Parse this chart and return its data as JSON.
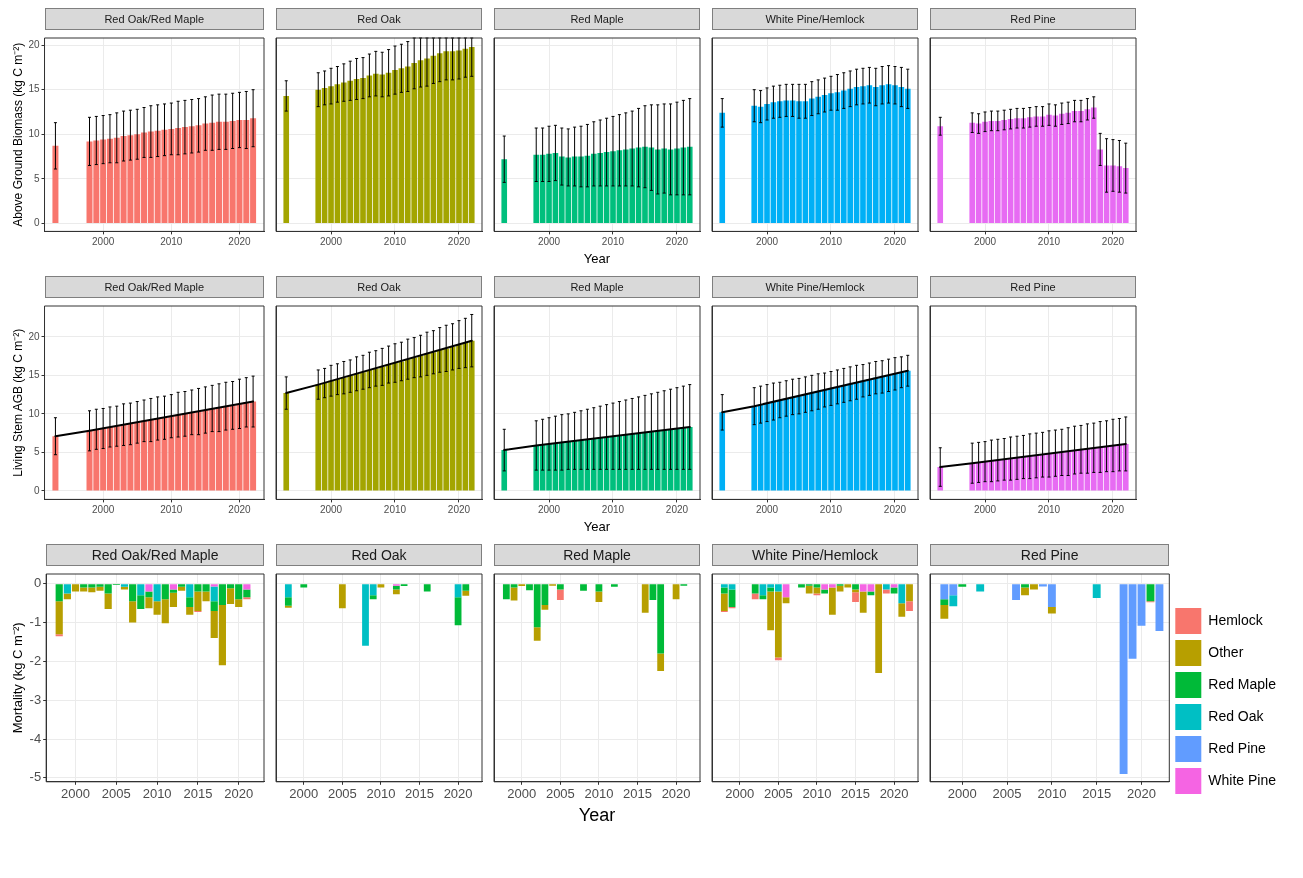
{
  "chart_data": [
    {
      "type": "bar",
      "title": "Red Oak/Red Maple",
      "ylabel": "Above Ground Biomass (kg C m⁻²)",
      "x": [
        1993,
        1998,
        1999,
        2000,
        2001,
        2002,
        2003,
        2004,
        2005,
        2006,
        2007,
        2008,
        2009,
        2010,
        2011,
        2012,
        2013,
        2014,
        2015,
        2016,
        2017,
        2018,
        2019,
        2020,
        2021,
        2022
      ],
      "color": "#f8766d",
      "values": [
        8.7,
        9.2,
        9.3,
        9.4,
        9.5,
        9.6,
        9.8,
        9.9,
        10.0,
        10.2,
        10.3,
        10.4,
        10.5,
        10.6,
        10.7,
        10.8,
        10.9,
        11.0,
        11.2,
        11.3,
        11.4,
        11.4,
        11.5,
        11.6,
        11.6,
        11.8
      ],
      "errors": [
        2.6,
        2.7,
        2.7,
        2.7,
        2.7,
        2.8,
        2.8,
        2.8,
        2.8,
        2.8,
        2.9,
        2.9,
        2.9,
        2.9,
        3.0,
        3.0,
        3.0,
        3.0,
        3.0,
        3.1,
        3.1,
        3.1,
        3.1,
        3.1,
        3.2,
        3.2
      ],
      "xlim": [
        1991.4,
        2023.6
      ],
      "ylim": [
        -0.9,
        20.8
      ],
      "xticks": [
        2000,
        2010,
        2020
      ],
      "yticks": [
        0,
        5,
        10,
        15,
        20
      ],
      "grid": true
    },
    {
      "type": "bar",
      "title": "Red Oak",
      "x": [
        1993,
        1998,
        1999,
        2000,
        2001,
        2002,
        2003,
        2004,
        2005,
        2006,
        2007,
        2008,
        2009,
        2010,
        2011,
        2012,
        2013,
        2014,
        2015,
        2016,
        2017,
        2018,
        2019,
        2020,
        2021,
        2022
      ],
      "color": "#a3a500",
      "values": [
        14.3,
        15.0,
        15.2,
        15.4,
        15.6,
        15.8,
        16.0,
        16.2,
        16.3,
        16.6,
        16.8,
        16.7,
        16.9,
        17.2,
        17.4,
        17.6,
        18.0,
        18.3,
        18.5,
        18.8,
        19.1,
        19.3,
        19.3,
        19.4,
        19.6,
        19.8
      ],
      "errors": [
        1.7,
        1.9,
        1.9,
        2.0,
        2.0,
        2.1,
        2.2,
        2.3,
        2.3,
        2.4,
        2.5,
        2.5,
        2.6,
        2.7,
        2.7,
        2.8,
        [
          15.1,
          20.8
        ],
        [
          15.3,
          20.8
        ],
        [
          15.4,
          20.8
        ],
        [
          15.7,
          20.8
        ],
        [
          15.9,
          20.8
        ],
        [
          16.1,
          20.8
        ],
        [
          16.1,
          20.8
        ],
        [
          16.2,
          20.8
        ],
        [
          16.4,
          20.8
        ],
        [
          16.5,
          20.8
        ]
      ],
      "xlim": [
        1991.4,
        2023.6
      ],
      "ylim": [
        -0.9,
        20.8
      ],
      "xticks": [
        2000,
        2010,
        2020
      ],
      "yticks": [
        0,
        5,
        10,
        15,
        20
      ],
      "grid": true,
      "tick_labels": "x"
    },
    {
      "type": "bar",
      "title": "Red Maple",
      "xlabel": "Year",
      "x": [
        1993,
        1998,
        1999,
        2000,
        2001,
        2002,
        2003,
        2004,
        2005,
        2006,
        2007,
        2008,
        2009,
        2010,
        2011,
        2012,
        2013,
        2014,
        2015,
        2016,
        2017,
        2018,
        2019,
        2020,
        2021,
        2022
      ],
      "color": "#00bf7d",
      "values": [
        7.2,
        7.7,
        7.7,
        7.8,
        7.9,
        7.5,
        7.4,
        7.5,
        7.5,
        7.6,
        7.8,
        7.9,
        8.0,
        8.1,
        8.2,
        8.3,
        8.4,
        8.5,
        8.6,
        8.5,
        8.3,
        8.4,
        8.3,
        8.4,
        8.5,
        8.6
      ],
      "errors": [
        2.6,
        3.0,
        3.0,
        3.1,
        3.1,
        3.2,
        3.2,
        3.3,
        3.4,
        3.5,
        3.6,
        3.7,
        3.8,
        3.9,
        4.0,
        4.1,
        4.2,
        4.4,
        4.6,
        4.8,
        5.0,
        5.0,
        5.1,
        5.2,
        5.3,
        5.4
      ],
      "xlim": [
        1991.4,
        2023.6
      ],
      "ylim": [
        -0.9,
        20.8
      ],
      "xticks": [
        2000,
        2010,
        2020
      ],
      "yticks": [
        0,
        5,
        10,
        15,
        20
      ],
      "grid": true,
      "tick_labels": "x"
    },
    {
      "type": "bar",
      "title": "White Pine/Hemlock",
      "x": [
        1993,
        1998,
        1999,
        2000,
        2001,
        2002,
        2003,
        2004,
        2005,
        2006,
        2007,
        2008,
        2009,
        2010,
        2011,
        2012,
        2013,
        2014,
        2015,
        2016,
        2017,
        2018,
        2019,
        2020,
        2021,
        2022
      ],
      "color": "#00b0f6",
      "values": [
        12.4,
        13.2,
        13.1,
        13.4,
        13.6,
        13.7,
        13.8,
        13.8,
        13.7,
        13.7,
        14.0,
        14.2,
        14.4,
        14.6,
        14.7,
        14.9,
        15.1,
        15.3,
        15.4,
        15.5,
        15.3,
        15.5,
        15.6,
        15.5,
        15.3,
        15.1
      ],
      "errors": [
        1.6,
        1.8,
        1.8,
        1.8,
        1.8,
        1.8,
        1.8,
        1.8,
        1.9,
        1.9,
        1.9,
        1.9,
        1.9,
        1.9,
        2.0,
        2.0,
        2.0,
        2.0,
        2.0,
        2.0,
        2.1,
        2.1,
        2.1,
        2.1,
        2.2,
        2.2
      ],
      "xlim": [
        1991.4,
        2023.6
      ],
      "ylim": [
        -0.9,
        20.8
      ],
      "xticks": [
        2000,
        2010,
        2020
      ],
      "yticks": [
        0,
        5,
        10,
        15,
        20
      ],
      "grid": true,
      "tick_labels": "x"
    },
    {
      "type": "bar",
      "title": "Red Pine",
      "x": [
        1993,
        1998,
        1999,
        2000,
        2001,
        2002,
        2003,
        2004,
        2005,
        2006,
        2007,
        2008,
        2009,
        2010,
        2011,
        2012,
        2013,
        2014,
        2015,
        2016,
        2017,
        2018,
        2019,
        2020,
        2021,
        2022
      ],
      "color": "#e76bf3",
      "values": [
        10.9,
        11.3,
        11.2,
        11.4,
        11.5,
        11.5,
        11.6,
        11.7,
        11.8,
        11.8,
        11.9,
        12.0,
        12.0,
        12.2,
        12.1,
        12.3,
        12.4,
        12.6,
        12.6,
        12.8,
        13.0,
        8.3,
        6.5,
        6.5,
        6.4,
        6.2
      ],
      "errors": [
        1.0,
        1.1,
        1.1,
        1.1,
        1.1,
        1.1,
        1.1,
        1.1,
        1.1,
        1.1,
        1.1,
        1.1,
        1.1,
        1.2,
        1.2,
        1.2,
        1.2,
        1.2,
        1.2,
        1.2,
        1.2,
        1.8,
        3.0,
        2.9,
        2.9,
        2.8
      ],
      "xlim": [
        1991.4,
        2023.6
      ],
      "ylim": [
        -0.9,
        20.8
      ],
      "xticks": [
        2000,
        2010,
        2020
      ],
      "yticks": [
        0,
        5,
        10,
        15,
        20
      ],
      "grid": true,
      "tick_labels": "x"
    },
    {
      "type": "bar",
      "title": "Red Oak/Red Maple",
      "ylabel": "Living Stem AGB (kg C m⁻²)",
      "x": [
        1993,
        1998,
        1999,
        2000,
        2001,
        2002,
        2003,
        2004,
        2005,
        2006,
        2007,
        2008,
        2009,
        2010,
        2011,
        2012,
        2013,
        2014,
        2015,
        2016,
        2017,
        2018,
        2019,
        2020,
        2021,
        2022
      ],
      "series": [
        {
          "type": "bar",
          "color": "#f8766d",
          "values": [
            7.1,
            7.8,
            8.0,
            8.1,
            8.3,
            8.4,
            8.6,
            8.7,
            8.9,
            9.1,
            9.2,
            9.4,
            9.5,
            9.7,
            9.9,
            10.0,
            10.2,
            10.3,
            10.5,
            10.7,
            10.8,
            11.0,
            11.1,
            11.3,
            11.5,
            11.6
          ],
          "errors": [
            2.4,
            2.6,
            2.6,
            2.6,
            2.6,
            2.6,
            2.7,
            2.7,
            2.7,
            2.7,
            2.8,
            2.8,
            2.8,
            2.8,
            2.9,
            2.9,
            2.9,
            3.0,
            3.0,
            3.0,
            3.1,
            3.1,
            3.1,
            3.2,
            3.2,
            3.3
          ]
        },
        {
          "type": "line",
          "color": "#000000",
          "x": [
            1993,
            1998,
            2022
          ],
          "values": [
            7.1,
            7.8,
            11.6
          ]
        }
      ],
      "xlim": [
        1991.4,
        2023.6
      ],
      "ylim": [
        -1.1,
        24
      ],
      "xticks": [
        2000,
        2010,
        2020
      ],
      "yticks": [
        0,
        5,
        10,
        15,
        20
      ],
      "grid": true
    },
    {
      "type": "bar",
      "title": "Red Oak",
      "x": [
        1993,
        1998,
        1999,
        2000,
        2001,
        2002,
        2003,
        2004,
        2005,
        2006,
        2007,
        2008,
        2009,
        2010,
        2011,
        2012,
        2013,
        2014,
        2015,
        2016,
        2017,
        2018,
        2019,
        2020,
        2021,
        2022
      ],
      "series": [
        {
          "type": "bar",
          "color": "#a3a500",
          "values": [
            12.7,
            13.8,
            14.0,
            14.3,
            14.5,
            14.7,
            14.9,
            15.2,
            15.4,
            15.7,
            15.9,
            16.1,
            16.4,
            16.6,
            16.8,
            17.1,
            17.3,
            17.5,
            17.8,
            18.0,
            18.3,
            18.5,
            18.7,
            19.0,
            19.2,
            19.5
          ],
          "errors": [
            2.1,
            1.9,
            1.9,
            2.0,
            2.0,
            2.1,
            2.1,
            2.2,
            2.2,
            2.3,
            2.3,
            2.4,
            2.4,
            2.5,
            2.5,
            2.6,
            2.6,
            2.7,
            2.8,
            2.8,
            2.9,
            3.0,
            3.0,
            3.1,
            3.2,
            3.4
          ]
        },
        {
          "type": "line",
          "color": "#000000",
          "x": [
            1993,
            1998,
            2022
          ],
          "values": [
            12.7,
            13.8,
            19.5
          ]
        }
      ],
      "xlim": [
        1991.4,
        2023.6
      ],
      "ylim": [
        -1.1,
        24
      ],
      "xticks": [
        2000,
        2010,
        2020
      ],
      "yticks": [
        0,
        5,
        10,
        15,
        20
      ],
      "grid": true,
      "tick_labels": "x"
    },
    {
      "type": "bar",
      "title": "Red Maple",
      "xlabel": "Year",
      "x": [
        1993,
        1998,
        1999,
        2000,
        2001,
        2002,
        2003,
        2004,
        2005,
        2006,
        2007,
        2008,
        2009,
        2010,
        2011,
        2012,
        2013,
        2014,
        2015,
        2016,
        2017,
        2018,
        2019,
        2020,
        2021,
        2022
      ],
      "series": [
        {
          "type": "bar",
          "color": "#00bf7d",
          "values": [
            5.3,
            5.9,
            6.0,
            6.1,
            6.2,
            6.3,
            6.4,
            6.5,
            6.6,
            6.7,
            6.8,
            6.9,
            7.0,
            7.1,
            7.2,
            7.3,
            7.4,
            7.5,
            7.6,
            7.7,
            7.8,
            7.9,
            8.0,
            8.1,
            8.2,
            8.3
          ],
          "errors": [
            2.7,
            3.2,
            3.3,
            3.4,
            3.5,
            3.6,
            3.6,
            3.7,
            3.8,
            3.9,
            4.0,
            4.1,
            4.2,
            4.3,
            4.4,
            4.5,
            4.6,
            4.7,
            4.8,
            4.9,
            5.0,
            5.1,
            5.2,
            5.3,
            5.4,
            5.5
          ]
        },
        {
          "type": "line",
          "color": "#000000",
          "x": [
            1993,
            1998,
            2022
          ],
          "values": [
            5.3,
            5.9,
            8.3
          ]
        }
      ],
      "xlim": [
        1991.4,
        2023.6
      ],
      "ylim": [
        -1.1,
        24
      ],
      "xticks": [
        2000,
        2010,
        2020
      ],
      "yticks": [
        0,
        5,
        10,
        15,
        20
      ],
      "grid": true,
      "tick_labels": "x"
    },
    {
      "type": "bar",
      "title": "White Pine/Hemlock",
      "x": [
        1993,
        1998,
        1999,
        2000,
        2001,
        2002,
        2003,
        2004,
        2005,
        2006,
        2007,
        2008,
        2009,
        2010,
        2011,
        2012,
        2013,
        2014,
        2015,
        2016,
        2017,
        2018,
        2019,
        2020,
        2021,
        2022
      ],
      "series": [
        {
          "type": "bar",
          "color": "#00b0f6",
          "values": [
            10.2,
            11.0,
            11.2,
            11.4,
            11.6,
            11.8,
            12.0,
            12.2,
            12.3,
            12.5,
            12.7,
            12.9,
            13.1,
            13.3,
            13.5,
            13.7,
            13.9,
            14.1,
            14.3,
            14.5,
            14.7,
            14.8,
            15.0,
            15.2,
            15.4,
            15.6
          ],
          "errors": [
            2.3,
            2.4,
            2.4,
            2.4,
            2.4,
            2.3,
            2.3,
            2.3,
            2.3,
            2.3,
            2.3,
            2.3,
            2.2,
            2.2,
            2.2,
            2.2,
            2.2,
            2.2,
            2.1,
            2.1,
            2.1,
            2.1,
            2.1,
            2.1,
            2.0,
            2.0
          ]
        },
        {
          "type": "line",
          "color": "#000000",
          "x": [
            1993,
            1998,
            2022
          ],
          "values": [
            10.2,
            11.0,
            15.6
          ]
        }
      ],
      "xlim": [
        1991.4,
        2023.6
      ],
      "ylim": [
        -1.1,
        24
      ],
      "xticks": [
        2000,
        2010,
        2020
      ],
      "yticks": [
        0,
        5,
        10,
        15,
        20
      ],
      "grid": true,
      "tick_labels": "x"
    },
    {
      "type": "bar",
      "title": "Red Pine",
      "x": [
        1993,
        1998,
        1999,
        2000,
        2001,
        2002,
        2003,
        2004,
        2005,
        2006,
        2007,
        2008,
        2009,
        2010,
        2011,
        2012,
        2013,
        2014,
        2015,
        2016,
        2017,
        2018,
        2019,
        2020,
        2021,
        2022
      ],
      "series": [
        {
          "type": "bar",
          "color": "#e76bf3",
          "values": [
            3.1,
            3.6,
            3.7,
            3.8,
            3.9,
            4.0,
            4.1,
            4.2,
            4.3,
            4.4,
            4.5,
            4.6,
            4.7,
            4.8,
            4.9,
            5.0,
            5.1,
            5.3,
            5.4,
            5.5,
            5.6,
            5.7,
            5.8,
            5.9,
            6.0,
            6.1
          ],
          "errors": [
            2.5,
            2.6,
            2.6,
            2.6,
            2.7,
            2.7,
            2.7,
            2.8,
            2.8,
            2.8,
            2.9,
            2.9,
            2.9,
            3.0,
            3.0,
            3.0,
            3.1,
            3.1,
            3.1,
            3.2,
            3.2,
            3.3,
            3.3,
            3.4,
            3.4,
            3.5
          ]
        },
        {
          "type": "line",
          "color": "#000000",
          "x": [
            1993,
            1998,
            2022
          ],
          "values": [
            3.1,
            3.6,
            6.1
          ]
        }
      ],
      "xlim": [
        1991.4,
        2023.6
      ],
      "ylim": [
        -1.1,
        24
      ],
      "xticks": [
        2000,
        2010,
        2020
      ],
      "yticks": [
        0,
        5,
        10,
        15,
        20
      ],
      "grid": true,
      "tick_labels": "x"
    },
    {
      "type": "bar",
      "stacked": true,
      "title": "Red Oak/Red Maple",
      "ylabel": "Mortality (kg C m⁻²)",
      "x": [
        1998,
        1999,
        2000,
        2001,
        2002,
        2003,
        2004,
        2005,
        2006,
        2007,
        2008,
        2009,
        2010,
        2011,
        2012,
        2013,
        2014,
        2015,
        2016,
        2017,
        2018,
        2019,
        2020,
        2021
      ],
      "series": [
        {
          "color": "#f564e3",
          "values": [
            null,
            null,
            null,
            null,
            null,
            null,
            null,
            null,
            null,
            null,
            null,
            -0.2,
            null,
            null,
            -0.15,
            null,
            null,
            null,
            null,
            -0.07,
            null,
            null,
            null,
            -0.15
          ]
        },
        {
          "color": "#00bfc4",
          "values": [
            null,
            -0.25,
            null,
            null,
            null,
            null,
            null,
            null,
            -0.08,
            null,
            -0.3,
            null,
            -0.45,
            null,
            null,
            null,
            -0.35,
            null,
            null,
            -0.38,
            null,
            null,
            null,
            null
          ]
        },
        {
          "color": "#00ba38",
          "values": [
            -0.45,
            null,
            null,
            -0.1,
            -0.1,
            -0.08,
            -0.25,
            -0.03,
            null,
            -0.45,
            -0.35,
            -0.15,
            null,
            -0.4,
            -0.08,
            -0.08,
            -0.25,
            -0.2,
            -0.2,
            -0.25,
            -0.55,
            -0.12,
            -0.4,
            -0.2
          ]
        },
        {
          "color": "#b79f00",
          "values": [
            -0.85,
            -0.15,
            -0.2,
            -0.1,
            -0.12,
            -0.1,
            -0.4,
            null,
            -0.07,
            -0.55,
            null,
            -0.28,
            -0.35,
            -0.62,
            -0.37,
            -0.1,
            -0.2,
            -0.5,
            -0.25,
            -0.7,
            -1.55,
            -0.4,
            -0.2,
            null
          ]
        },
        {
          "color": "#f8766d",
          "values": [
            -0.05,
            null,
            null,
            null,
            null,
            null,
            null,
            null,
            null,
            null,
            null,
            null,
            null,
            null,
            null,
            null,
            null,
            -0.03,
            null,
            null,
            null,
            null,
            null,
            -0.05
          ]
        }
      ],
      "xlim": [
        1996.4,
        2023.1
      ],
      "ylim": [
        -5.1,
        0.25
      ],
      "xticks": [
        2000,
        2005,
        2010,
        2015,
        2020
      ],
      "yticks": [
        0,
        -1,
        -2,
        -3,
        -4,
        -5
      ],
      "grid": true
    },
    {
      "type": "bar",
      "stacked": true,
      "title": "Red Oak",
      "x": [
        1998,
        1999,
        2000,
        2001,
        2002,
        2003,
        2004,
        2005,
        2006,
        2007,
        2008,
        2009,
        2010,
        2011,
        2012,
        2013,
        2014,
        2015,
        2016,
        2017,
        2018,
        2019,
        2020,
        2021
      ],
      "series": [
        {
          "color": "#f564e3",
          "values": [
            null,
            null,
            null,
            null,
            null,
            null,
            null,
            null,
            null,
            null,
            null,
            null,
            null,
            null,
            -0.05,
            null,
            null,
            null,
            null,
            null,
            null,
            null,
            null,
            null
          ]
        },
        {
          "color": "#00bfc4",
          "values": [
            -0.35,
            null,
            null,
            null,
            null,
            null,
            null,
            null,
            null,
            null,
            -1.6,
            -0.3,
            null,
            null,
            null,
            null,
            null,
            null,
            null,
            null,
            null,
            null,
            -0.35,
            null
          ]
        },
        {
          "color": "#00ba38",
          "values": [
            -0.22,
            null,
            -0.1,
            null,
            null,
            null,
            null,
            null,
            null,
            null,
            null,
            -0.1,
            null,
            null,
            -0.1,
            -0.06,
            null,
            null,
            -0.2,
            null,
            null,
            null,
            -0.72,
            -0.18
          ]
        },
        {
          "color": "#b79f00",
          "values": [
            -0.05,
            null,
            null,
            null,
            null,
            null,
            null,
            -0.63,
            null,
            null,
            null,
            null,
            -0.1,
            null,
            -0.12,
            null,
            null,
            null,
            null,
            null,
            null,
            null,
            null,
            -0.13
          ]
        }
      ],
      "xlim": [
        1996.4,
        2023.1
      ],
      "ylim": [
        -5.1,
        0.25
      ],
      "xticks": [
        2000,
        2005,
        2010,
        2015,
        2020
      ],
      "yticks": [
        0,
        -1,
        -2,
        -3,
        -4,
        -5
      ],
      "grid": true,
      "tick_labels": "x"
    },
    {
      "type": "bar",
      "stacked": true,
      "title": "Red Maple",
      "xlabel": "Year",
      "x": [
        1998,
        1999,
        2000,
        2001,
        2002,
        2003,
        2004,
        2005,
        2006,
        2007,
        2008,
        2009,
        2010,
        2011,
        2012,
        2013,
        2014,
        2015,
        2016,
        2017,
        2018,
        2019,
        2020,
        2021
      ],
      "series": [
        {
          "color": "#00ba38",
          "values": [
            -0.4,
            -0.1,
            null,
            -0.17,
            -1.12,
            -0.55,
            null,
            -0.15,
            null,
            null,
            -0.18,
            null,
            -0.2,
            null,
            -0.08,
            null,
            null,
            null,
            null,
            -0.42,
            -1.8,
            null,
            null,
            -0.05
          ]
        },
        {
          "color": "#b79f00",
          "values": [
            null,
            -0.33,
            -0.06,
            null,
            -0.35,
            -0.12,
            -0.05,
            null,
            null,
            null,
            null,
            null,
            -0.27,
            null,
            null,
            null,
            null,
            null,
            -0.75,
            null,
            -0.45,
            null,
            -0.4,
            null
          ]
        },
        {
          "color": "#f8766d",
          "values": [
            null,
            null,
            null,
            null,
            null,
            null,
            null,
            -0.27,
            null,
            null,
            null,
            null,
            null,
            null,
            null,
            null,
            null,
            null,
            null,
            null,
            null,
            null,
            null,
            null
          ]
        }
      ],
      "xlim": [
        1996.4,
        2023.1
      ],
      "ylim": [
        -5.1,
        0.25
      ],
      "xticks": [
        2000,
        2005,
        2010,
        2015,
        2020
      ],
      "yticks": [
        0,
        -1,
        -2,
        -3,
        -4,
        -5
      ],
      "grid": true,
      "tick_labels": "x"
    },
    {
      "type": "bar",
      "stacked": true,
      "title": "White Pine/Hemlock",
      "x": [
        1998,
        1999,
        2000,
        2001,
        2002,
        2003,
        2004,
        2005,
        2006,
        2007,
        2008,
        2009,
        2010,
        2011,
        2012,
        2013,
        2014,
        2015,
        2016,
        2017,
        2018,
        2019,
        2020,
        2021,
        2022
      ],
      "series": [
        {
          "color": "#f564e3",
          "values": [
            null,
            null,
            null,
            null,
            null,
            null,
            null,
            null,
            -0.35,
            null,
            null,
            null,
            null,
            -0.15,
            -0.1,
            null,
            null,
            null,
            -0.2,
            -0.2,
            null,
            null,
            -0.1,
            null,
            null
          ]
        },
        {
          "color": "#00bfc4",
          "values": [
            -0.1,
            -0.15,
            null,
            null,
            null,
            -0.3,
            -0.1,
            -0.2,
            null,
            null,
            null,
            null,
            null,
            null,
            null,
            null,
            null,
            null,
            null,
            null,
            null,
            -0.15,
            null,
            -0.5,
            null
          ]
        },
        {
          "color": "#00ba38",
          "values": [
            -0.15,
            -0.45,
            null,
            null,
            -0.25,
            -0.1,
            -0.1,
            null,
            null,
            null,
            -0.1,
            -0.05,
            -0.1,
            -0.1,
            null,
            -0.05,
            null,
            -0.15,
            null,
            -0.1,
            null,
            null,
            -0.15,
            null,
            null
          ]
        },
        {
          "color": "#b79f00",
          "values": [
            -0.45,
            null,
            null,
            null,
            null,
            null,
            -1.0,
            -1.7,
            -0.15,
            null,
            null,
            -0.2,
            -0.15,
            null,
            -0.7,
            -0.15,
            -0.1,
            -0.07,
            -0.55,
            null,
            -2.3,
            null,
            null,
            -0.35,
            -0.45
          ]
        },
        {
          "color": "#f8766d",
          "values": [
            -0.03,
            -0.03,
            null,
            null,
            -0.15,
            null,
            null,
            -0.07,
            null,
            null,
            null,
            null,
            -0.05,
            null,
            null,
            null,
            null,
            -0.25,
            null,
            null,
            null,
            -0.1,
            null,
            null,
            -0.25
          ]
        }
      ],
      "xlim": [
        1996.4,
        2023.1
      ],
      "ylim": [
        -5.1,
        0.25
      ],
      "xticks": [
        2000,
        2005,
        2010,
        2015,
        2020
      ],
      "yticks": [
        0,
        -1,
        -2,
        -3,
        -4,
        -5
      ],
      "grid": true,
      "tick_labels": "x"
    },
    {
      "type": "bar",
      "stacked": true,
      "title": "Red Pine",
      "legend": "right",
      "x": [
        1998,
        1999,
        2000,
        2001,
        2002,
        2003,
        2004,
        2005,
        2006,
        2007,
        2008,
        2009,
        2010,
        2011,
        2012,
        2013,
        2014,
        2015,
        2016,
        2017,
        2018,
        2019,
        2020,
        2021,
        2022
      ],
      "series": [
        {
          "name": "White Pine",
          "color": "#f564e3",
          "values": [
            null,
            null,
            null,
            null,
            null,
            null,
            null,
            null,
            null,
            null,
            null,
            null,
            null,
            null,
            null,
            null,
            null,
            null,
            null,
            null,
            null,
            null,
            null,
            null,
            null
          ]
        },
        {
          "name": "Red Pine",
          "color": "#619cff",
          "values": [
            -0.4,
            -0.3,
            null,
            null,
            null,
            null,
            null,
            null,
            -0.42,
            null,
            null,
            -0.07,
            -0.6,
            null,
            null,
            null,
            null,
            null,
            null,
            null,
            -4.9,
            -1.93,
            -1.08,
            null,
            -1.22
          ]
        },
        {
          "name": "Red Oak",
          "color": "#00bfc4",
          "values": [
            null,
            -0.28,
            null,
            null,
            -0.2,
            null,
            null,
            null,
            null,
            null,
            null,
            null,
            null,
            null,
            null,
            null,
            null,
            -0.37,
            null,
            null,
            null,
            null,
            null,
            null,
            null
          ]
        },
        {
          "name": "Red Maple",
          "color": "#00ba38",
          "values": [
            -0.15,
            null,
            -0.08,
            null,
            null,
            null,
            null,
            null,
            null,
            -0.1,
            null,
            null,
            null,
            null,
            null,
            null,
            null,
            null,
            null,
            null,
            null,
            null,
            null,
            -0.45,
            null
          ]
        },
        {
          "name": "Other",
          "color": "#b79f00",
          "values": [
            -0.35,
            null,
            null,
            null,
            null,
            null,
            null,
            null,
            null,
            -0.2,
            -0.15,
            null,
            -0.17,
            null,
            null,
            null,
            null,
            null,
            null,
            null,
            null,
            null,
            null,
            null,
            null
          ]
        },
        {
          "name": "Hemlock",
          "color": "#f8766d",
          "values": [
            null,
            null,
            null,
            null,
            null,
            null,
            null,
            null,
            null,
            null,
            null,
            null,
            null,
            null,
            null,
            null,
            null,
            null,
            null,
            null,
            null,
            null,
            null,
            -0.03,
            null
          ]
        }
      ],
      "xlim": [
        1996.4,
        2023.1
      ],
      "ylim": [
        -5.1,
        0.25
      ],
      "xticks": [
        2000,
        2005,
        2010,
        2015,
        2020
      ],
      "yticks": [
        0,
        -1,
        -2,
        -3,
        -4,
        -5
      ],
      "grid": true,
      "tick_labels": "x"
    }
  ]
}
